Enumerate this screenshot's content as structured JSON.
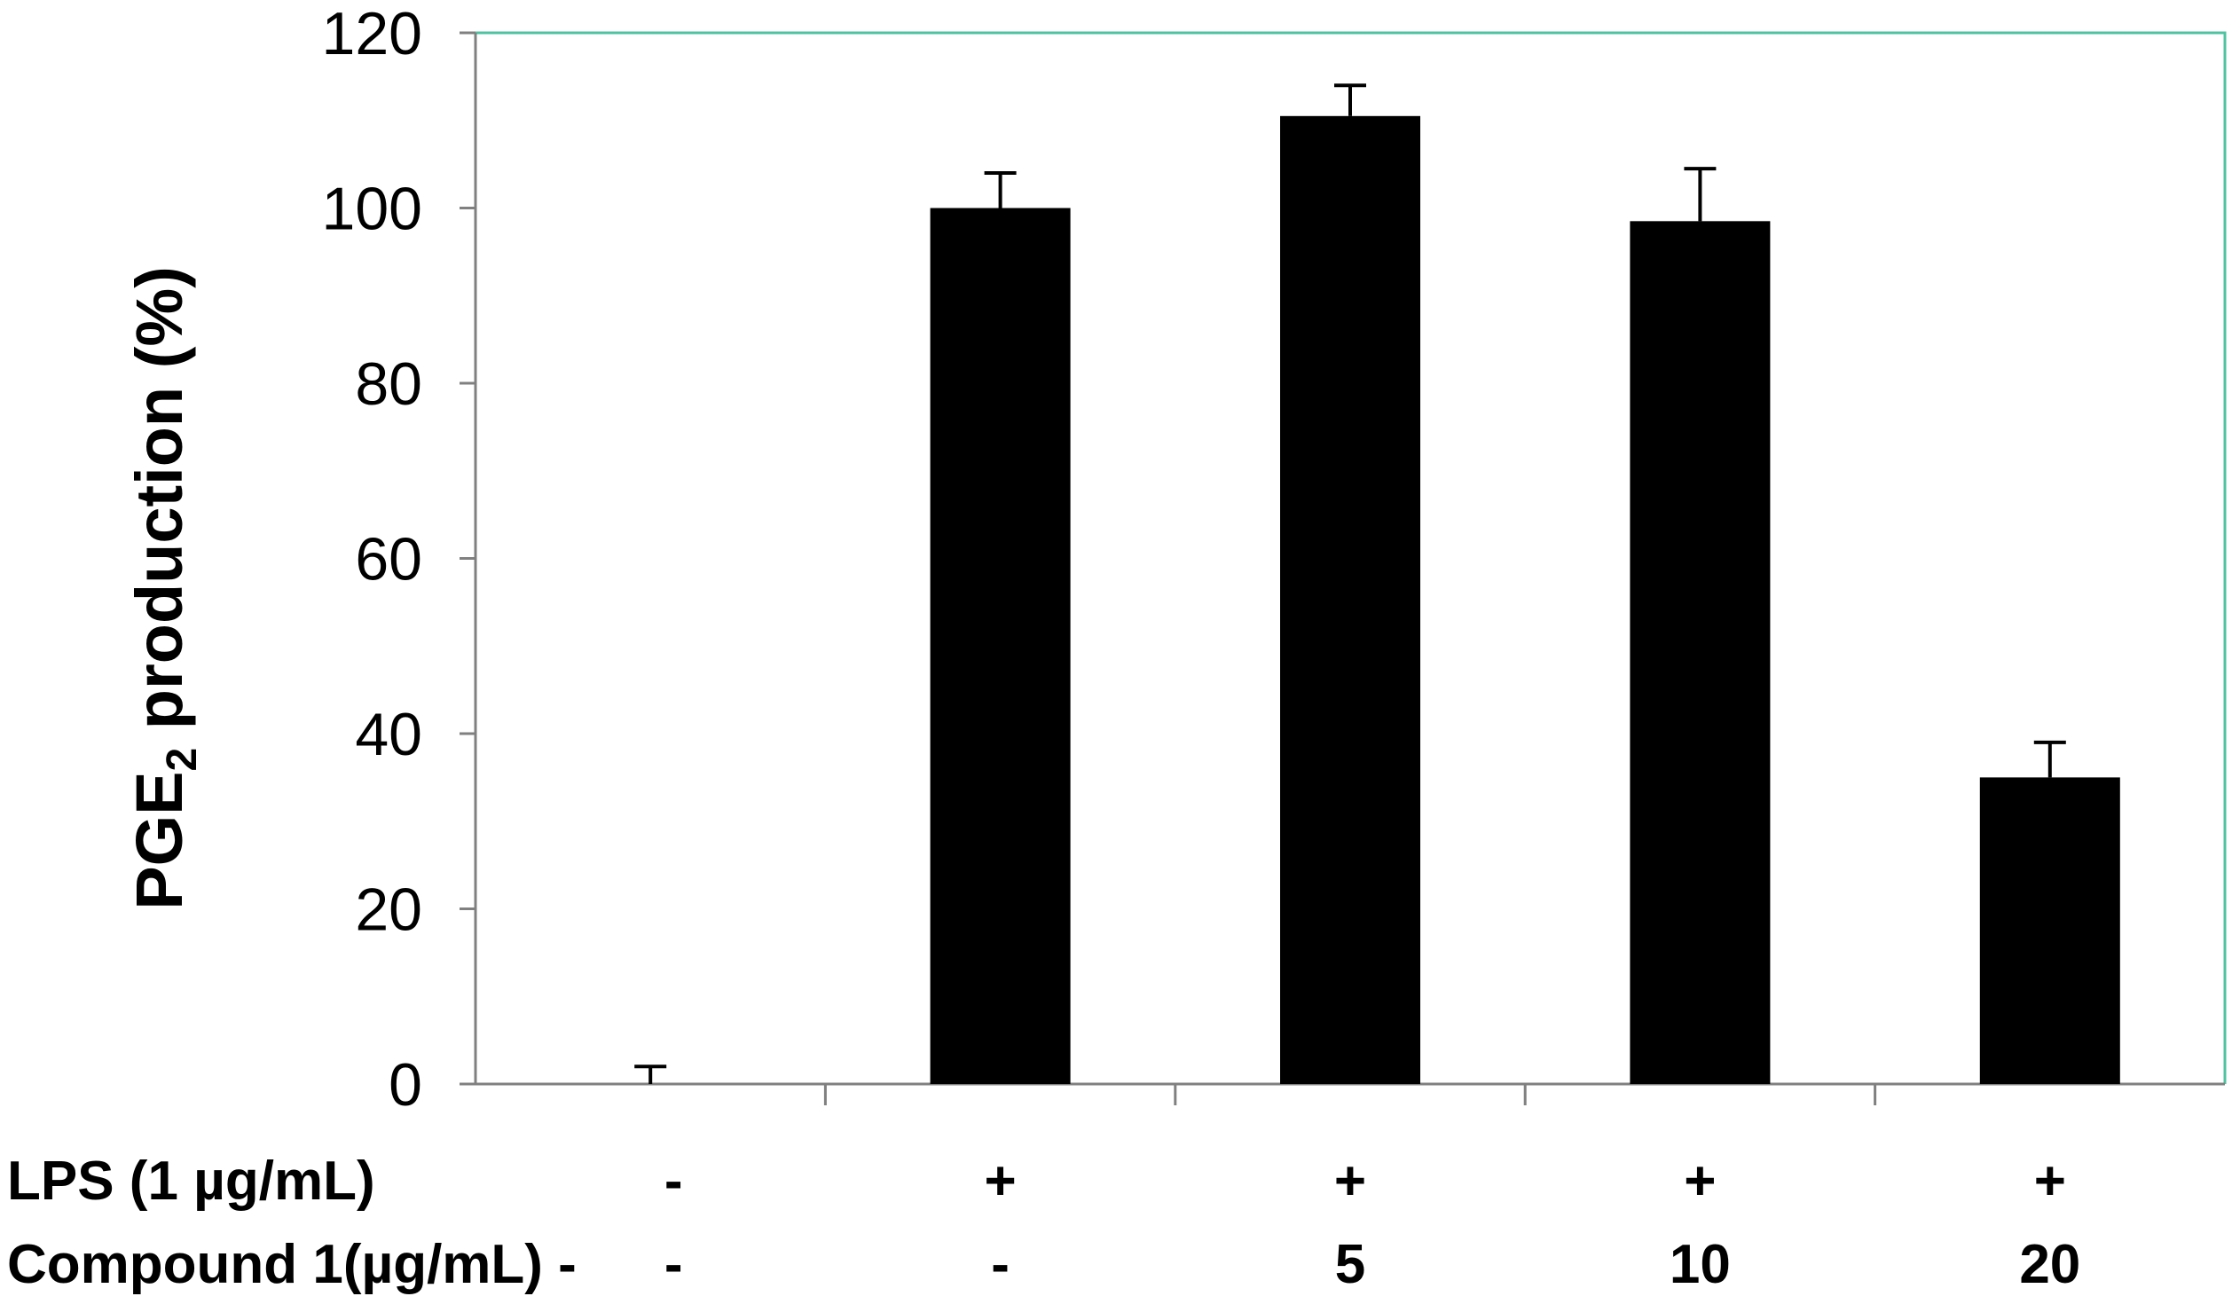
{
  "chart_data": {
    "type": "bar",
    "ylabel": {
      "main": "PGE",
      "subscript": "2",
      "rest": " production (%)"
    },
    "ylim": [
      0,
      120
    ],
    "yticks": [
      "0",
      "20",
      "40",
      "60",
      "80",
      "100",
      "120"
    ],
    "rows": [
      {
        "label": "LPS  (1 µg/mL)",
        "values": [
          "-",
          "+",
          "+",
          "+",
          "+"
        ]
      },
      {
        "label": "Compound 1(µg/mL) -",
        "values": [
          "-",
          "-",
          "5",
          "10",
          "20"
        ]
      }
    ],
    "series": [
      {
        "values": [
          0,
          100,
          110.5,
          98.5,
          35
        ],
        "errors": [
          2,
          4,
          3.5,
          6,
          4
        ]
      }
    ],
    "grid": false,
    "colors": {
      "bar": "#000000",
      "plot_border": "#4fc3a1",
      "axis": "#808080"
    }
  }
}
